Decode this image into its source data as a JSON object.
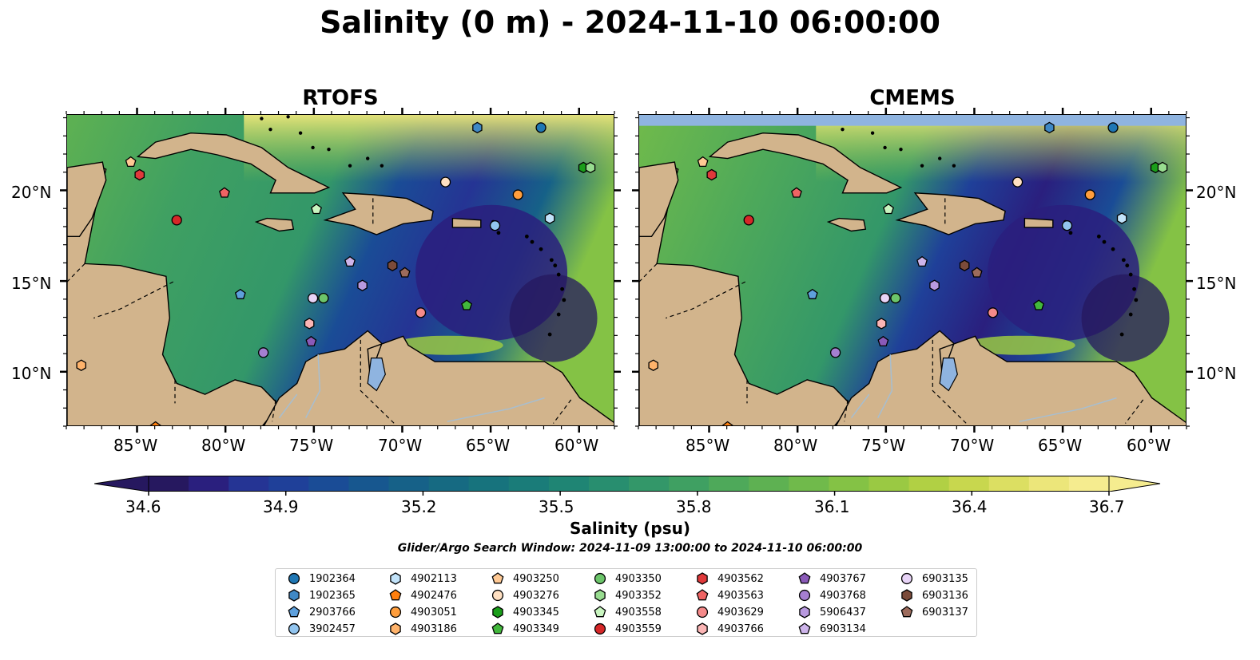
{
  "title": "Salinity (0 m) - 2024-11-10 06:00:00",
  "panels": [
    {
      "id": "rtofs",
      "title": "RTOFS"
    },
    {
      "id": "cmems",
      "title": "CMEMS"
    }
  ],
  "lon_ticks": [
    "85°W",
    "80°W",
    "75°W",
    "70°W",
    "65°W",
    "60°W"
  ],
  "lat_ticks": [
    "20°N",
    "15°N",
    "10°N"
  ],
  "colorbar": {
    "label": "Salinity (psu)",
    "min": 34.6,
    "max": 36.7,
    "extend": "both",
    "ticks": [
      "34.6",
      "34.9",
      "35.2",
      "35.5",
      "35.8",
      "36.1",
      "36.4",
      "36.7"
    ],
    "colors": [
      "#26185f",
      "#2a1f7e",
      "#253494",
      "#1f4099",
      "#1a4c96",
      "#17578f",
      "#166188",
      "#166a82",
      "#17737d",
      "#1a7c79",
      "#1f8574",
      "#288e6f",
      "#339769",
      "#3fa062",
      "#4ea95a",
      "#5eb152",
      "#70ba4b",
      "#84c245",
      "#9ac943",
      "#b1d044",
      "#c8d74e",
      "#dcdf62",
      "#ece67a",
      "#f5ec8f"
    ]
  },
  "subtitle": "Glider/Argo Search Window: 2024-11-09 13:00:00 to 2024-11-10 06:00:00",
  "legend": [
    {
      "id": "1902364",
      "marker": "circle",
      "color": "#1f77b4"
    },
    {
      "id": "1902365",
      "marker": "hexagon",
      "color": "#3f88c5"
    },
    {
      "id": "2903766",
      "marker": "pentagon",
      "color": "#5ea0dc"
    },
    {
      "id": "3902457",
      "marker": "circle",
      "color": "#92c5ef"
    },
    {
      "id": "4902113",
      "marker": "hexagon",
      "color": "#c2e3fa"
    },
    {
      "id": "4902476",
      "marker": "pentagon",
      "color": "#ff7f0e"
    },
    {
      "id": "4903051",
      "marker": "circle",
      "color": "#ff9e3d"
    },
    {
      "id": "4903186",
      "marker": "hexagon",
      "color": "#ffb36b"
    },
    {
      "id": "4903250",
      "marker": "pentagon",
      "color": "#ffc994"
    },
    {
      "id": "4903276",
      "marker": "circle",
      "color": "#ffe0c2"
    },
    {
      "id": "4903345",
      "marker": "hexagon",
      "color": "#1a9e1a"
    },
    {
      "id": "4903349",
      "marker": "pentagon",
      "color": "#42b83c"
    },
    {
      "id": "4903350",
      "marker": "circle",
      "color": "#6cc56a"
    },
    {
      "id": "4903352",
      "marker": "hexagon",
      "color": "#98dc90"
    },
    {
      "id": "4903558",
      "marker": "pentagon",
      "color": "#c9f5c0"
    },
    {
      "id": "4903559",
      "marker": "circle",
      "color": "#d62728"
    },
    {
      "id": "4903562",
      "marker": "hexagon",
      "color": "#e0393b"
    },
    {
      "id": "4903563",
      "marker": "pentagon",
      "color": "#ef6464"
    },
    {
      "id": "4903629",
      "marker": "circle",
      "color": "#f58a8a"
    },
    {
      "id": "4903766",
      "marker": "hexagon",
      "color": "#fbb5b5"
    },
    {
      "id": "4903767",
      "marker": "pentagon",
      "color": "#8a5ab8"
    },
    {
      "id": "4903768",
      "marker": "circle",
      "color": "#a57fd1"
    },
    {
      "id": "5906437",
      "marker": "hexagon",
      "color": "#b899df"
    },
    {
      "id": "6903134",
      "marker": "pentagon",
      "color": "#cdb4ea"
    },
    {
      "id": "6903135",
      "marker": "circle",
      "color": "#e8d4f7"
    },
    {
      "id": "6903136",
      "marker": "hexagon",
      "color": "#7b4b3a"
    },
    {
      "id": "6903137",
      "marker": "pentagon",
      "color": "#9c6b5c"
    }
  ],
  "map_extent": {
    "lon": [
      -89,
      -58
    ],
    "lat": [
      7,
      24.2
    ]
  },
  "colors": {
    "land": "#d2b48c",
    "lake": "#8fb4e0",
    "deep_ocean": "#26185f",
    "blank_band": "#8fb4e0"
  },
  "platforms": [
    {
      "legend": "1902364",
      "lon": -62.2,
      "lat": 23.5
    },
    {
      "legend": "1902365",
      "lon": -65.8,
      "lat": 23.5
    },
    {
      "legend": "4903345",
      "lon": -59.8,
      "lat": 21.3
    },
    {
      "legend": "4903352",
      "lon": -59.4,
      "lat": 21.3
    },
    {
      "legend": "4903250",
      "lon": -85.4,
      "lat": 21.6
    },
    {
      "legend": "4903562",
      "lon": -84.9,
      "lat": 20.9
    },
    {
      "legend": "4903563",
      "lon": -80.1,
      "lat": 19.9
    },
    {
      "legend": "4903276",
      "lon": -67.6,
      "lat": 20.5
    },
    {
      "legend": "4903051",
      "lon": -63.5,
      "lat": 19.8
    },
    {
      "legend": "4903558",
      "lon": -74.9,
      "lat": 19.0
    },
    {
      "legend": "4903559",
      "lon": -82.8,
      "lat": 18.4
    },
    {
      "legend": "4902113",
      "lon": -61.7,
      "lat": 18.5
    },
    {
      "legend": "3902457",
      "lon": -64.8,
      "lat": 18.1
    },
    {
      "legend": "6903134",
      "lon": -73.0,
      "lat": 16.1
    },
    {
      "legend": "6903136",
      "lon": -70.6,
      "lat": 15.9
    },
    {
      "legend": "6903137",
      "lon": -69.9,
      "lat": 15.5
    },
    {
      "legend": "5906437",
      "lon": -72.3,
      "lat": 14.8
    },
    {
      "legend": "2903766",
      "lon": -79.2,
      "lat": 14.3
    },
    {
      "legend": "6903135",
      "lon": -75.1,
      "lat": 14.1
    },
    {
      "legend": "4903350",
      "lon": -74.5,
      "lat": 14.1
    },
    {
      "legend": "4903349",
      "lon": -66.4,
      "lat": 13.7
    },
    {
      "legend": "4903629",
      "lon": -69.0,
      "lat": 13.3
    },
    {
      "legend": "4903766",
      "lon": -75.3,
      "lat": 12.7
    },
    {
      "legend": "4903767",
      "lon": -75.2,
      "lat": 11.7
    },
    {
      "legend": "4903768",
      "lon": -77.9,
      "lat": 11.1
    },
    {
      "legend": "4903186",
      "lon": -88.2,
      "lat": 10.4
    },
    {
      "legend": "4902476",
      "lon": -84.0,
      "lat": 7.0
    }
  ]
}
